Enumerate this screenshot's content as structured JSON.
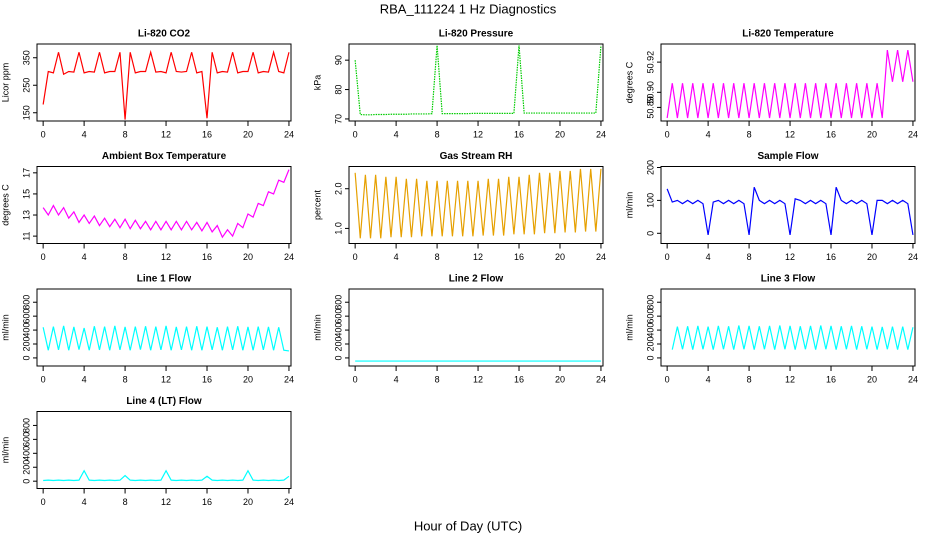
{
  "chart_data": {
    "title": "RBA_111224  1 Hz Diagnostics",
    "xlabel": "Hour of Day (UTC)",
    "xlim": [
      -0.6,
      24.2
    ],
    "xticks": [
      0,
      4,
      8,
      12,
      16,
      20,
      24
    ],
    "x": [
      0,
      0.5,
      1,
      1.5,
      2,
      2.5,
      3,
      3.5,
      4,
      4.5,
      5,
      5.5,
      6,
      6.5,
      7,
      7.5,
      8,
      8.5,
      9,
      9.5,
      10,
      10.5,
      11,
      11.5,
      12,
      12.5,
      13,
      13.5,
      14,
      14.5,
      15,
      15.5,
      16,
      16.5,
      17,
      17.5,
      18,
      18.5,
      19,
      19.5,
      20,
      20.5,
      21,
      21.5,
      22,
      22.5,
      23,
      23.5,
      24
    ],
    "panels": [
      {
        "type": "line",
        "title": "Li-820 CO2",
        "ylabel": "Licor ppm",
        "color": "#ff0000",
        "ylim": [
          120,
          400
        ],
        "yticks": [
          150,
          250,
          350
        ],
        "values": [
          180,
          300,
          295,
          370,
          290,
          300,
          298,
          370,
          295,
          300,
          298,
          370,
          295,
          300,
          300,
          370,
          125,
          370,
          295,
          300,
          300,
          370,
          298,
          300,
          295,
          370,
          300,
          298,
          300,
          370,
          295,
          300,
          130,
          370,
          295,
          300,
          298,
          370,
          295,
          300,
          300,
          370,
          295,
          300,
          298,
          370,
          300,
          295,
          370
        ]
      },
      {
        "type": "line",
        "title": "Li-820 Pressure",
        "ylabel": "kPa",
        "color": "#00cc00",
        "line_style": "dotted",
        "ylim": [
          69.3,
          95.5
        ],
        "yticks": [
          70,
          80,
          90
        ],
        "values": [
          90,
          71.5,
          71.4,
          71.4,
          71.5,
          71.5,
          71.5,
          71.6,
          71.6,
          71.6,
          71.6,
          71.7,
          71.7,
          71.7,
          71.7,
          71.8,
          95,
          71.8,
          71.8,
          71.8,
          71.8,
          71.8,
          71.8,
          71.9,
          71.9,
          71.9,
          71.9,
          71.9,
          71.9,
          71.9,
          71.9,
          71.9,
          95,
          72,
          72,
          72,
          72,
          72,
          72,
          72,
          72,
          72,
          72,
          72,
          72,
          72,
          72,
          72,
          95
        ]
      },
      {
        "type": "line",
        "title": "Li-820 Temperature",
        "ylabel": "degrees C",
        "color": "#ff00ff",
        "ylim": [
          50.881,
          50.932
        ],
        "yticks": [
          50.89,
          {
            "value": 50.9,
            "label": "50.90"
          },
          50.92
        ],
        "values": [
          50.883,
          50.906,
          50.883,
          50.906,
          50.883,
          50.906,
          50.883,
          50.906,
          50.883,
          50.906,
          50.883,
          50.906,
          50.883,
          50.906,
          50.883,
          50.906,
          50.883,
          50.906,
          50.883,
          50.906,
          50.883,
          50.906,
          50.883,
          50.906,
          50.883,
          50.906,
          50.883,
          50.906,
          50.883,
          50.906,
          50.883,
          50.906,
          50.883,
          50.906,
          50.883,
          50.906,
          50.883,
          50.906,
          50.883,
          50.906,
          50.883,
          50.906,
          50.883,
          50.928,
          50.907,
          50.928,
          50.907,
          50.928,
          50.907
        ]
      },
      {
        "type": "line",
        "title": "Ambient Box Temperature",
        "ylabel": "degrees C",
        "color": "#ff00ff",
        "ylim": [
          10.3,
          17.6
        ],
        "yticks": [
          11,
          13,
          15,
          17
        ],
        "values": [
          13.7,
          13.0,
          13.9,
          13.0,
          13.7,
          12.7,
          13.3,
          12.3,
          13.0,
          12.2,
          12.9,
          12.0,
          12.7,
          11.9,
          12.6,
          11.8,
          12.6,
          11.7,
          12.5,
          11.7,
          12.4,
          11.6,
          12.4,
          11.6,
          12.4,
          11.6,
          12.4,
          11.6,
          12.4,
          11.6,
          12.3,
          11.5,
          12.3,
          11.4,
          12.0,
          10.9,
          11.6,
          11.0,
          12.2,
          11.8,
          13.1,
          12.8,
          14.1,
          13.9,
          15.2,
          15.0,
          16.3,
          16.1,
          17.3
        ]
      },
      {
        "type": "line",
        "title": "Gas Stream RH",
        "ylabel": "percent",
        "color": "#e6a000",
        "ylim": [
          0.62,
          2.56
        ],
        "yticks": [
          {
            "value": 1,
            "label": "1.0"
          },
          {
            "value": 2,
            "label": "2.0"
          }
        ],
        "values": [
          2.4,
          0.75,
          2.35,
          0.75,
          2.35,
          0.75,
          2.3,
          0.78,
          2.3,
          0.78,
          2.25,
          0.78,
          2.25,
          0.8,
          2.2,
          0.8,
          2.2,
          0.8,
          2.2,
          0.8,
          2.2,
          0.8,
          2.2,
          0.8,
          2.2,
          0.82,
          2.25,
          0.82,
          2.25,
          0.82,
          2.3,
          0.85,
          2.3,
          0.85,
          2.35,
          0.85,
          2.4,
          0.88,
          2.4,
          0.88,
          2.45,
          0.9,
          2.45,
          0.9,
          2.5,
          0.92,
          2.5,
          0.92,
          2.5
        ]
      },
      {
        "type": "line",
        "title": "Sample Flow",
        "ylabel": "ml/min",
        "color": "#0000ff",
        "ylim": [
          -31,
          203
        ],
        "yticks": [
          0,
          100,
          200
        ],
        "values": [
          135,
          95,
          100,
          90,
          100,
          90,
          100,
          90,
          -5,
          95,
          100,
          90,
          100,
          90,
          100,
          90,
          -5,
          140,
          100,
          90,
          100,
          90,
          100,
          90,
          -5,
          105,
          100,
          90,
          100,
          90,
          100,
          90,
          -5,
          140,
          100,
          90,
          100,
          90,
          100,
          90,
          -5,
          100,
          100,
          90,
          100,
          90,
          100,
          90,
          -5
        ]
      },
      {
        "type": "line",
        "title": "Line 1 Flow",
        "ylabel": "ml/min",
        "color": "#00ffff",
        "ylim": [
          -116,
          990
        ],
        "yticks": [
          0,
          200,
          400,
          600,
          800
        ],
        "values": [
          440,
          110,
          450,
          115,
          460,
          110,
          445,
          120,
          430,
          110,
          455,
          115,
          450,
          110,
          460,
          115,
          445,
          110,
          450,
          120,
          455,
          110,
          450,
          115,
          460,
          110,
          445,
          115,
          450,
          110,
          455,
          110,
          450,
          115,
          440,
          110,
          450,
          115,
          455,
          110,
          445,
          110,
          450,
          115,
          445,
          110,
          440,
          110,
          100
        ]
      },
      {
        "type": "line",
        "title": "Line 2 Flow",
        "ylabel": "ml/min",
        "color": "#00ffff",
        "ylim": [
          -116,
          990
        ],
        "yticks": [
          0,
          200,
          400,
          600,
          800
        ],
        "values": [
          -45,
          -45,
          -45,
          -45,
          -45,
          -45,
          -45,
          -45,
          -45,
          -45,
          -45,
          -45,
          -45,
          -45,
          -45,
          -45,
          -45,
          -45,
          -45,
          -45,
          -45,
          -45,
          -45,
          -45,
          -45,
          -45,
          -45,
          -45,
          -45,
          -45,
          -45,
          -45,
          -45,
          -45,
          -45,
          -45,
          -45,
          -45,
          -45,
          -45,
          -45,
          -45,
          -45,
          -45,
          -45,
          -45,
          -45,
          -45,
          -45
        ]
      },
      {
        "type": "line",
        "title": "Line 3 Flow",
        "ylabel": "ml/min",
        "color": "#00ffff",
        "ylim": [
          -116,
          990
        ],
        "yticks": [
          0,
          200,
          400,
          600,
          800
        ],
        "values": [
          null,
          120,
          450,
          125,
          455,
          120,
          460,
          125,
          450,
          120,
          460,
          125,
          455,
          120,
          465,
          125,
          460,
          120,
          455,
          125,
          460,
          120,
          465,
          125,
          460,
          120,
          455,
          125,
          460,
          120,
          465,
          125,
          460,
          120,
          455,
          125,
          460,
          120,
          455,
          125,
          450,
          120,
          445,
          125,
          450,
          120,
          450,
          120,
          440
        ]
      },
      {
        "type": "line",
        "title": "Line 4 (LT) Flow",
        "ylabel": "ml/min",
        "color": "#00ffff",
        "ylim": [
          -105,
          1000
        ],
        "yticks": [
          0,
          200,
          400,
          600,
          800
        ],
        "values": [
          10,
          15,
          10,
          15,
          10,
          15,
          10,
          15,
          150,
          15,
          10,
          15,
          10,
          15,
          10,
          15,
          80,
          15,
          10,
          15,
          10,
          15,
          10,
          15,
          150,
          15,
          10,
          15,
          10,
          15,
          10,
          15,
          70,
          15,
          10,
          15,
          10,
          15,
          10,
          15,
          150,
          15,
          10,
          15,
          10,
          15,
          10,
          15,
          70
        ]
      }
    ]
  }
}
